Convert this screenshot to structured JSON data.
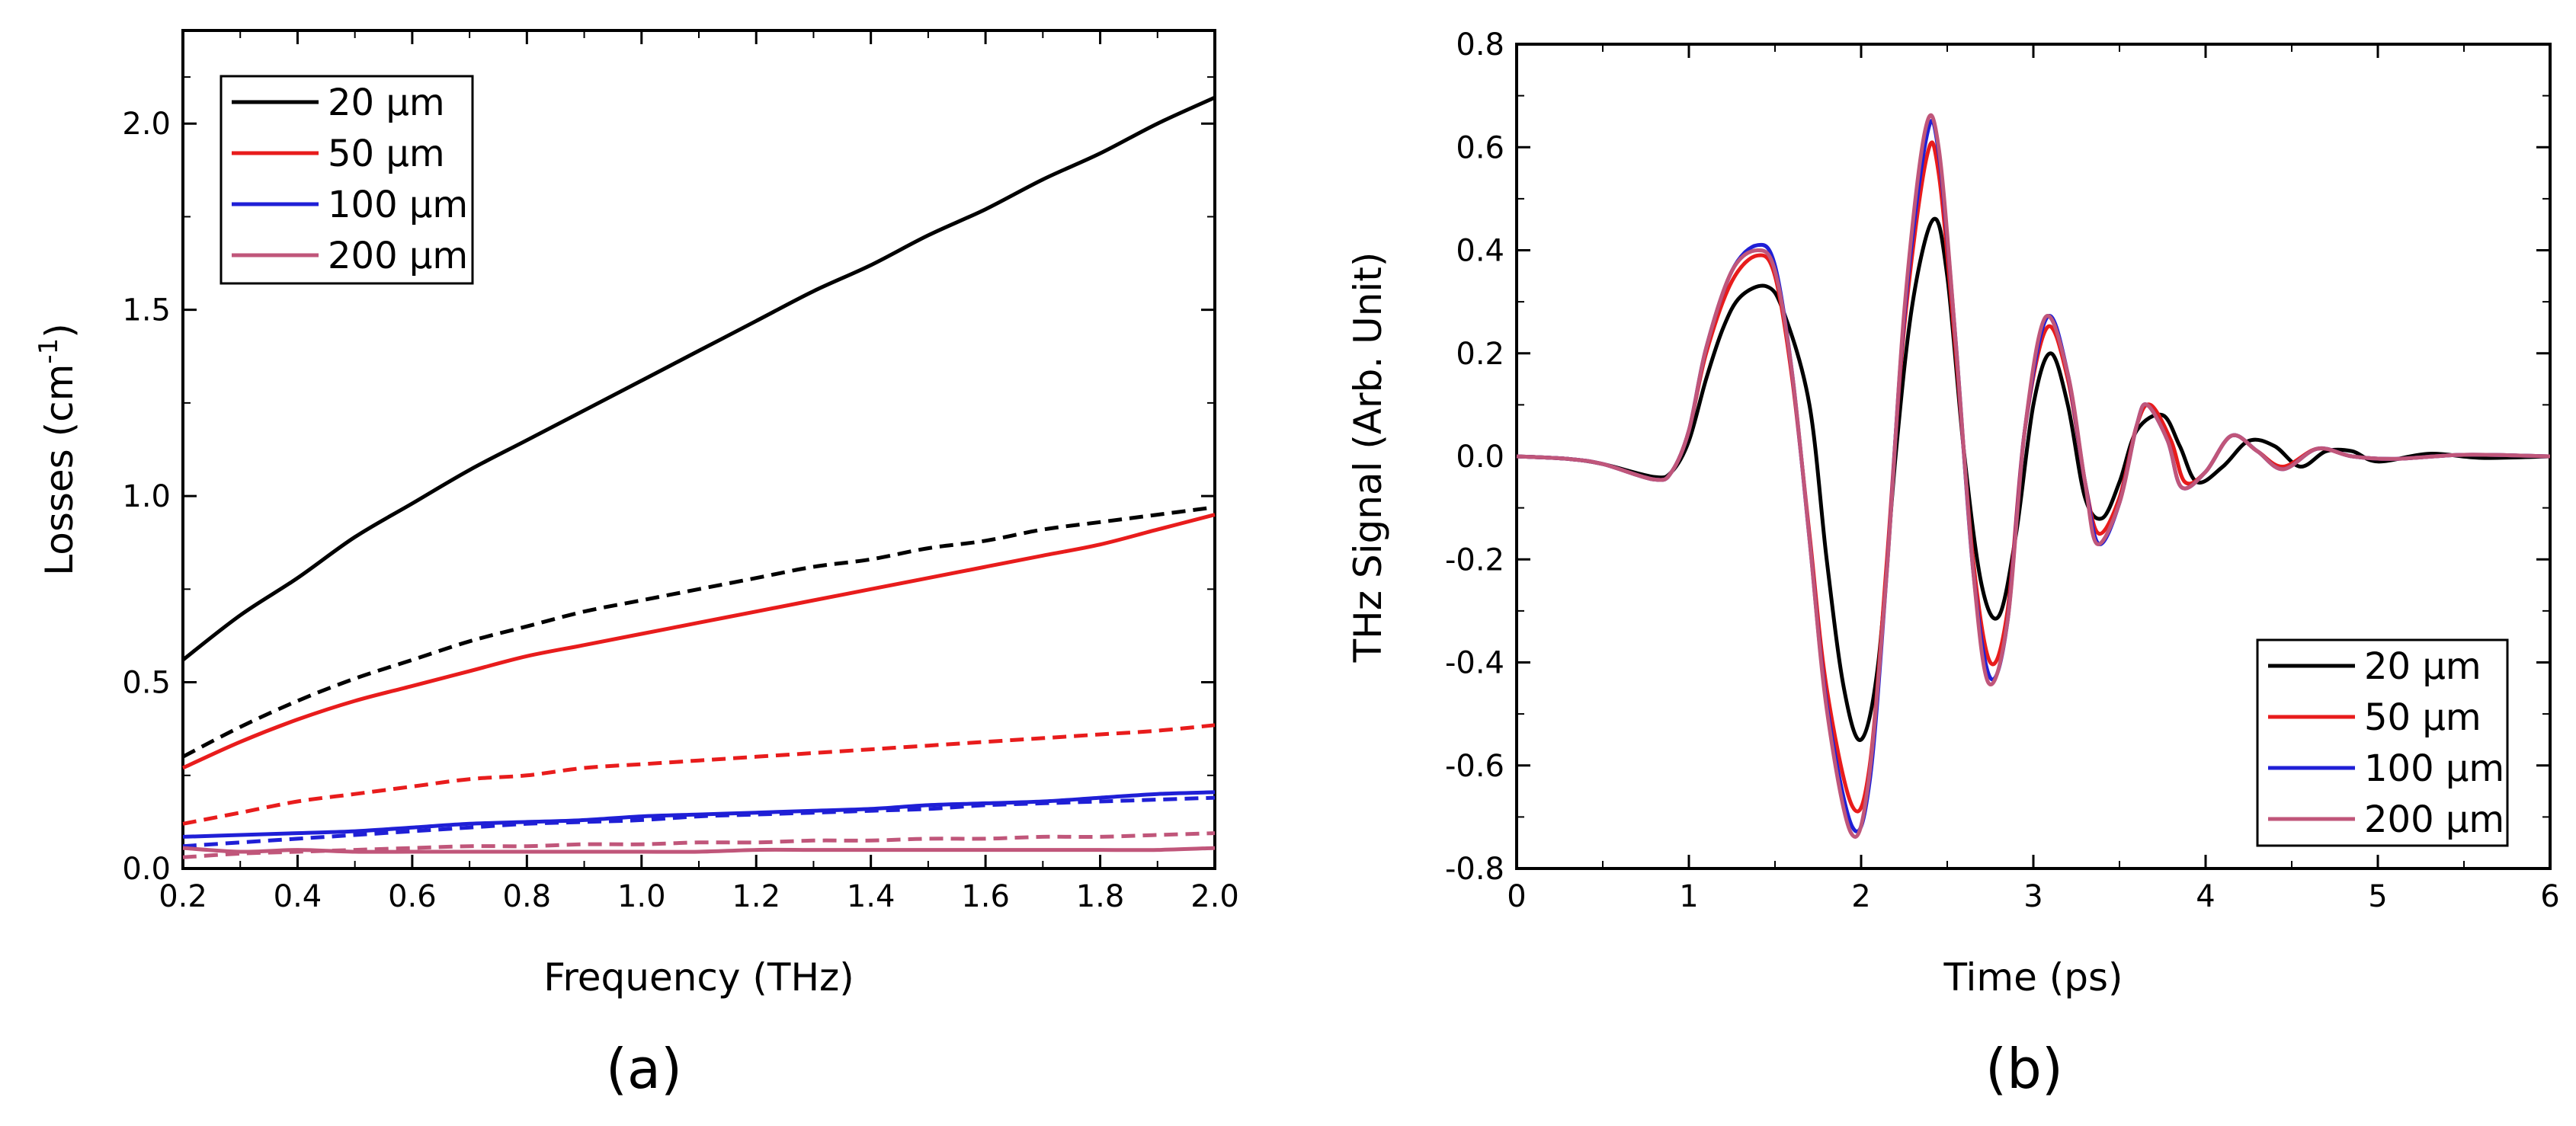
{
  "chart_data": [
    {
      "type": "line",
      "panel_label": "(a)",
      "xlabel": "Frequency (THz)",
      "ylabel_main": "Losses (cm",
      "ylabel_sup": "-1",
      "ylabel_close": ")",
      "xlim": [
        0.2,
        2.0
      ],
      "ylim": [
        0.0,
        2.25
      ],
      "xticks": [
        0.2,
        0.4,
        0.6,
        0.8,
        1.0,
        1.2,
        1.4,
        1.6,
        1.8,
        2.0
      ],
      "xtick_labels": [
        "0.2",
        "0.4",
        "0.6",
        "0.8",
        "1.0",
        "1.2",
        "1.4",
        "1.6",
        "1.8",
        "2.0"
      ],
      "yticks": [
        0.0,
        0.5,
        1.0,
        1.5,
        2.0
      ],
      "ytick_labels": [
        "0.0",
        "0.5",
        "1.0",
        "1.5",
        "2.0"
      ],
      "legend_position": "top-left",
      "x": [
        0.2,
        0.3,
        0.4,
        0.5,
        0.6,
        0.7,
        0.8,
        0.9,
        1.0,
        1.1,
        1.2,
        1.3,
        1.4,
        1.5,
        1.6,
        1.7,
        1.8,
        1.9,
        2.0
      ],
      "series": [
        {
          "name": "20 µm",
          "color": "#000000",
          "style": "solid",
          "values": [
            0.56,
            0.68,
            0.78,
            0.89,
            0.98,
            1.07,
            1.15,
            1.23,
            1.31,
            1.39,
            1.47,
            1.55,
            1.62,
            1.7,
            1.77,
            1.85,
            1.92,
            2.0,
            2.07
          ]
        },
        {
          "name": "20 µm dashed",
          "color": "#000000",
          "style": "dashed",
          "values": [
            0.3,
            0.38,
            0.45,
            0.51,
            0.56,
            0.61,
            0.65,
            0.69,
            0.72,
            0.75,
            0.78,
            0.81,
            0.83,
            0.86,
            0.88,
            0.91,
            0.93,
            0.95,
            0.97
          ]
        },
        {
          "name": "50 µm",
          "color": "#e81c1c",
          "style": "solid",
          "values": [
            0.27,
            0.34,
            0.4,
            0.45,
            0.49,
            0.53,
            0.57,
            0.6,
            0.63,
            0.66,
            0.69,
            0.72,
            0.75,
            0.78,
            0.81,
            0.84,
            0.87,
            0.91,
            0.95
          ]
        },
        {
          "name": "50 µm dashed",
          "color": "#e81c1c",
          "style": "dashed",
          "values": [
            0.12,
            0.15,
            0.18,
            0.2,
            0.22,
            0.24,
            0.25,
            0.27,
            0.28,
            0.29,
            0.3,
            0.31,
            0.32,
            0.33,
            0.34,
            0.35,
            0.36,
            0.37,
            0.385
          ]
        },
        {
          "name": "100 µm",
          "color": "#1f1fd6",
          "style": "solid",
          "values": [
            0.085,
            0.09,
            0.095,
            0.1,
            0.11,
            0.12,
            0.125,
            0.13,
            0.14,
            0.145,
            0.15,
            0.155,
            0.16,
            0.17,
            0.175,
            0.18,
            0.19,
            0.2,
            0.205
          ]
        },
        {
          "name": "100 µm dashed",
          "color": "#1f1fd6",
          "style": "dashed",
          "values": [
            0.06,
            0.07,
            0.08,
            0.09,
            0.1,
            0.11,
            0.12,
            0.125,
            0.13,
            0.14,
            0.145,
            0.15,
            0.155,
            0.16,
            0.17,
            0.175,
            0.18,
            0.185,
            0.19
          ]
        },
        {
          "name": "200 µm",
          "color": "#c0567a",
          "style": "solid",
          "values": [
            0.055,
            0.045,
            0.05,
            0.045,
            0.045,
            0.045,
            0.045,
            0.045,
            0.045,
            0.045,
            0.05,
            0.05,
            0.05,
            0.05,
            0.05,
            0.05,
            0.05,
            0.05,
            0.055
          ]
        },
        {
          "name": "200 µm dashed",
          "color": "#c0567a",
          "style": "dashed",
          "values": [
            0.03,
            0.04,
            0.045,
            0.05,
            0.055,
            0.06,
            0.06,
            0.065,
            0.065,
            0.07,
            0.07,
            0.075,
            0.075,
            0.08,
            0.08,
            0.085,
            0.085,
            0.09,
            0.095
          ]
        }
      ],
      "legend": [
        {
          "label": "20 µm",
          "color": "#000000"
        },
        {
          "label": "50 µm",
          "color": "#e81c1c"
        },
        {
          "label": "100 µm",
          "color": "#1f1fd6"
        },
        {
          "label": "200 µm",
          "color": "#c0567a"
        }
      ]
    },
    {
      "type": "line",
      "panel_label": "(b)",
      "xlabel": "Time (ps)",
      "ylabel": "THz Signal (Arb. Unit)",
      "xlim": [
        0,
        6
      ],
      "ylim": [
        -0.8,
        0.8
      ],
      "xticks": [
        0,
        1,
        2,
        3,
        4,
        5,
        6
      ],
      "xtick_labels": [
        "0",
        "1",
        "2",
        "3",
        "4",
        "5",
        "6"
      ],
      "yticks": [
        -0.8,
        -0.6,
        -0.4,
        -0.2,
        0.0,
        0.2,
        0.4,
        0.6,
        0.8
      ],
      "ytick_labels": [
        "-0.8",
        "-0.6",
        "-0.4",
        "-0.2",
        "0.0",
        "0.2",
        "0.4",
        "0.6",
        "0.8"
      ],
      "legend_position": "bottom-right",
      "series": [
        {
          "name": "20 µm",
          "color": "#000000",
          "points": [
            [
              0,
              0
            ],
            [
              0.3,
              -0.005
            ],
            [
              0.5,
              -0.015
            ],
            [
              0.8,
              -0.04
            ],
            [
              0.9,
              -0.03
            ],
            [
              1.0,
              0.03
            ],
            [
              1.1,
              0.15
            ],
            [
              1.2,
              0.25
            ],
            [
              1.3,
              0.31
            ],
            [
              1.45,
              0.33
            ],
            [
              1.55,
              0.28
            ],
            [
              1.7,
              0.1
            ],
            [
              1.8,
              -0.2
            ],
            [
              1.9,
              -0.45
            ],
            [
              2.0,
              -0.55
            ],
            [
              2.1,
              -0.4
            ],
            [
              2.2,
              0.0
            ],
            [
              2.3,
              0.3
            ],
            [
              2.42,
              0.46
            ],
            [
              2.5,
              0.35
            ],
            [
              2.6,
              0.0
            ],
            [
              2.7,
              -0.25
            ],
            [
              2.8,
              -0.31
            ],
            [
              2.9,
              -0.15
            ],
            [
              3.0,
              0.1
            ],
            [
              3.1,
              0.2
            ],
            [
              3.2,
              0.1
            ],
            [
              3.3,
              -0.08
            ],
            [
              3.4,
              -0.12
            ],
            [
              3.5,
              -0.05
            ],
            [
              3.6,
              0.05
            ],
            [
              3.75,
              0.08
            ],
            [
              3.85,
              0.02
            ],
            [
              3.95,
              -0.05
            ],
            [
              4.1,
              -0.02
            ],
            [
              4.25,
              0.03
            ],
            [
              4.4,
              0.02
            ],
            [
              4.55,
              -0.02
            ],
            [
              4.7,
              0.01
            ],
            [
              4.85,
              0.01
            ],
            [
              5.0,
              -0.01
            ],
            [
              5.3,
              0.005
            ],
            [
              5.6,
              -0.003
            ],
            [
              6.0,
              0
            ]
          ]
        },
        {
          "name": "50 µm",
          "color": "#e81c1c",
          "points": [
            [
              0,
              0
            ],
            [
              0.3,
              -0.005
            ],
            [
              0.5,
              -0.015
            ],
            [
              0.8,
              -0.045
            ],
            [
              0.9,
              -0.03
            ],
            [
              1.0,
              0.05
            ],
            [
              1.1,
              0.2
            ],
            [
              1.25,
              0.34
            ],
            [
              1.4,
              0.39
            ],
            [
              1.5,
              0.35
            ],
            [
              1.6,
              0.15
            ],
            [
              1.7,
              -0.15
            ],
            [
              1.8,
              -0.45
            ],
            [
              1.95,
              -0.68
            ],
            [
              2.05,
              -0.6
            ],
            [
              2.15,
              -0.2
            ],
            [
              2.25,
              0.25
            ],
            [
              2.38,
              0.58
            ],
            [
              2.45,
              0.55
            ],
            [
              2.55,
              0.2
            ],
            [
              2.65,
              -0.2
            ],
            [
              2.75,
              -0.4
            ],
            [
              2.85,
              -0.3
            ],
            [
              2.95,
              0.05
            ],
            [
              3.08,
              0.25
            ],
            [
              3.2,
              0.15
            ],
            [
              3.3,
              -0.05
            ],
            [
              3.38,
              -0.15
            ],
            [
              3.5,
              -0.08
            ],
            [
              3.6,
              0.06
            ],
            [
              3.68,
              0.1
            ],
            [
              3.8,
              0.03
            ],
            [
              3.88,
              -0.05
            ],
            [
              4.0,
              -0.03
            ],
            [
              4.15,
              0.04
            ],
            [
              4.3,
              0.01
            ],
            [
              4.45,
              -0.02
            ],
            [
              4.65,
              0.015
            ],
            [
              4.85,
              0.0
            ],
            [
              5.1,
              -0.005
            ],
            [
              5.5,
              0.003
            ],
            [
              6.0,
              0
            ]
          ]
        },
        {
          "name": "100 µm",
          "color": "#1f1fd6",
          "points": [
            [
              0,
              0
            ],
            [
              0.3,
              -0.005
            ],
            [
              0.5,
              -0.015
            ],
            [
              0.8,
              -0.045
            ],
            [
              0.9,
              -0.03
            ],
            [
              1.0,
              0.05
            ],
            [
              1.1,
              0.21
            ],
            [
              1.25,
              0.36
            ],
            [
              1.4,
              0.41
            ],
            [
              1.5,
              0.37
            ],
            [
              1.6,
              0.16
            ],
            [
              1.7,
              -0.16
            ],
            [
              1.8,
              -0.48
            ],
            [
              1.95,
              -0.72
            ],
            [
              2.05,
              -0.63
            ],
            [
              2.15,
              -0.22
            ],
            [
              2.25,
              0.27
            ],
            [
              2.38,
              0.62
            ],
            [
              2.45,
              0.59
            ],
            [
              2.55,
              0.22
            ],
            [
              2.65,
              -0.22
            ],
            [
              2.75,
              -0.43
            ],
            [
              2.85,
              -0.32
            ],
            [
              2.95,
              0.05
            ],
            [
              3.08,
              0.27
            ],
            [
              3.2,
              0.16
            ],
            [
              3.3,
              -0.05
            ],
            [
              3.38,
              -0.17
            ],
            [
              3.5,
              -0.09
            ],
            [
              3.6,
              0.06
            ],
            [
              3.66,
              0.1
            ],
            [
              3.78,
              0.03
            ],
            [
              3.86,
              -0.06
            ],
            [
              4.0,
              -0.03
            ],
            [
              4.15,
              0.04
            ],
            [
              4.3,
              0.01
            ],
            [
              4.45,
              -0.025
            ],
            [
              4.65,
              0.015
            ],
            [
              4.85,
              0.0
            ],
            [
              5.1,
              -0.005
            ],
            [
              5.5,
              0.003
            ],
            [
              6.0,
              0
            ]
          ]
        },
        {
          "name": "200 µm",
          "color": "#c0567a",
          "points": [
            [
              0,
              0
            ],
            [
              0.3,
              -0.005
            ],
            [
              0.5,
              -0.015
            ],
            [
              0.8,
              -0.045
            ],
            [
              0.9,
              -0.03
            ],
            [
              1.0,
              0.05
            ],
            [
              1.1,
              0.21
            ],
            [
              1.25,
              0.36
            ],
            [
              1.4,
              0.4
            ],
            [
              1.5,
              0.36
            ],
            [
              1.6,
              0.16
            ],
            [
              1.7,
              -0.16
            ],
            [
              1.8,
              -0.49
            ],
            [
              1.94,
              -0.73
            ],
            [
              2.04,
              -0.64
            ],
            [
              2.15,
              -0.22
            ],
            [
              2.25,
              0.28
            ],
            [
              2.37,
              0.63
            ],
            [
              2.45,
              0.6
            ],
            [
              2.55,
              0.22
            ],
            [
              2.65,
              -0.22
            ],
            [
              2.74,
              -0.44
            ],
            [
              2.85,
              -0.32
            ],
            [
              2.95,
              0.05
            ],
            [
              3.07,
              0.27
            ],
            [
              3.2,
              0.16
            ],
            [
              3.3,
              -0.05
            ],
            [
              3.37,
              -0.17
            ],
            [
              3.5,
              -0.09
            ],
            [
              3.6,
              0.06
            ],
            [
              3.66,
              0.1
            ],
            [
              3.78,
              0.03
            ],
            [
              3.86,
              -0.06
            ],
            [
              4.0,
              -0.03
            ],
            [
              4.15,
              0.04
            ],
            [
              4.3,
              0.01
            ],
            [
              4.45,
              -0.025
            ],
            [
              4.65,
              0.015
            ],
            [
              4.85,
              0.0
            ],
            [
              5.1,
              -0.005
            ],
            [
              5.5,
              0.003
            ],
            [
              6.0,
              0
            ]
          ]
        }
      ],
      "legend": [
        {
          "label": "20 µm",
          "color": "#000000"
        },
        {
          "label": "50 µm",
          "color": "#e81c1c"
        },
        {
          "label": "100 µm",
          "color": "#1f1fd6"
        },
        {
          "label": "200 µm",
          "color": "#c0567a"
        }
      ]
    }
  ]
}
